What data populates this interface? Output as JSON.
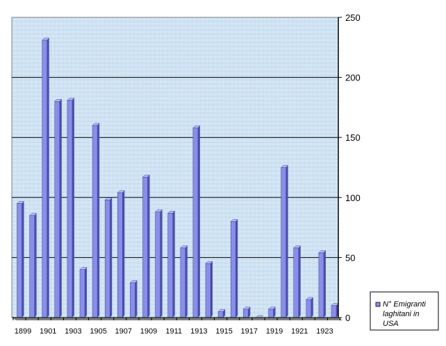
{
  "chart_data": {
    "type": "bar",
    "title": "",
    "xlabel": "",
    "ylabel": "",
    "x": [
      1899,
      1900,
      1901,
      1902,
      1903,
      1904,
      1905,
      1906,
      1907,
      1908,
      1909,
      1910,
      1911,
      1912,
      1913,
      1914,
      1915,
      1916,
      1917,
      1918,
      1919,
      1920,
      1921,
      1922,
      1923,
      1924
    ],
    "x_tick_labels": [
      "1899",
      "1901",
      "1903",
      "1905",
      "1907",
      "1909",
      "1911",
      "1913",
      "1915",
      "1917",
      "1919",
      "1921",
      "1923"
    ],
    "series": [
      {
        "name": "N° Emigranti laghitani in USA",
        "values": [
          95,
          85,
          231,
          180,
          181,
          40,
          160,
          98,
          104,
          29,
          117,
          88,
          87,
          58,
          158,
          45,
          5,
          80,
          7,
          0,
          7,
          125,
          58,
          15,
          54,
          10
        ]
      }
    ],
    "ylim": [
      0,
      250
    ],
    "y_ticks": [
      "0",
      "50",
      "100",
      "150",
      "200",
      "250"
    ],
    "y_axis_side": "right",
    "grid": true,
    "legend_position": "bottom-right",
    "colors": {
      "plot_background": "#cfe3f3",
      "bar_front": "#8a8ee8",
      "bar_side": "#4a4fb0",
      "bar_top": "#b9bcf6",
      "gridline": "#000000",
      "floor": "#7f7f7f"
    }
  }
}
